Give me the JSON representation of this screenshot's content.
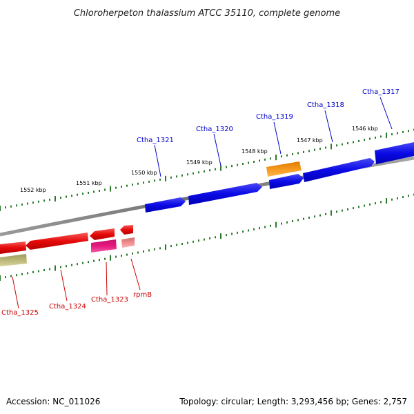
{
  "title": "Chloroherpeton thalassium ATCC 35110, complete genome",
  "footer": {
    "accession": "Accession: NC_011026",
    "summary": "Topology: circular; Length: 3,293,456 bp; Genes: 2,757"
  },
  "colors": {
    "background": "#ffffff",
    "forward_gene": "#0a0ae6",
    "reverse_gene": "#e60a0a",
    "rna_gene": "#f08c00",
    "pink_gene": "#e6197f",
    "light_red_gene": "#f08c8c",
    "olive_gene": "#bcb878",
    "backbone": "#808080",
    "ticks": "#2a7a2a",
    "forward_label": "#0000cc",
    "reverse_label": "#cc0000"
  },
  "scale": {
    "kbp_labels": [
      "1546 kbp",
      "1547 kbp",
      "1548 kbp",
      "1549 kbp",
      "1550 kbp",
      "1551 kbp",
      "1552 kbp"
    ]
  },
  "forward_labels": [
    "Ctha_1317",
    "Ctha_1318",
    "Ctha_1319",
    "Ctha_1320",
    "Ctha_1321"
  ],
  "reverse_labels": [
    "rpmB",
    "Ctha_1323",
    "Ctha_1324",
    "Ctha_1325"
  ]
}
